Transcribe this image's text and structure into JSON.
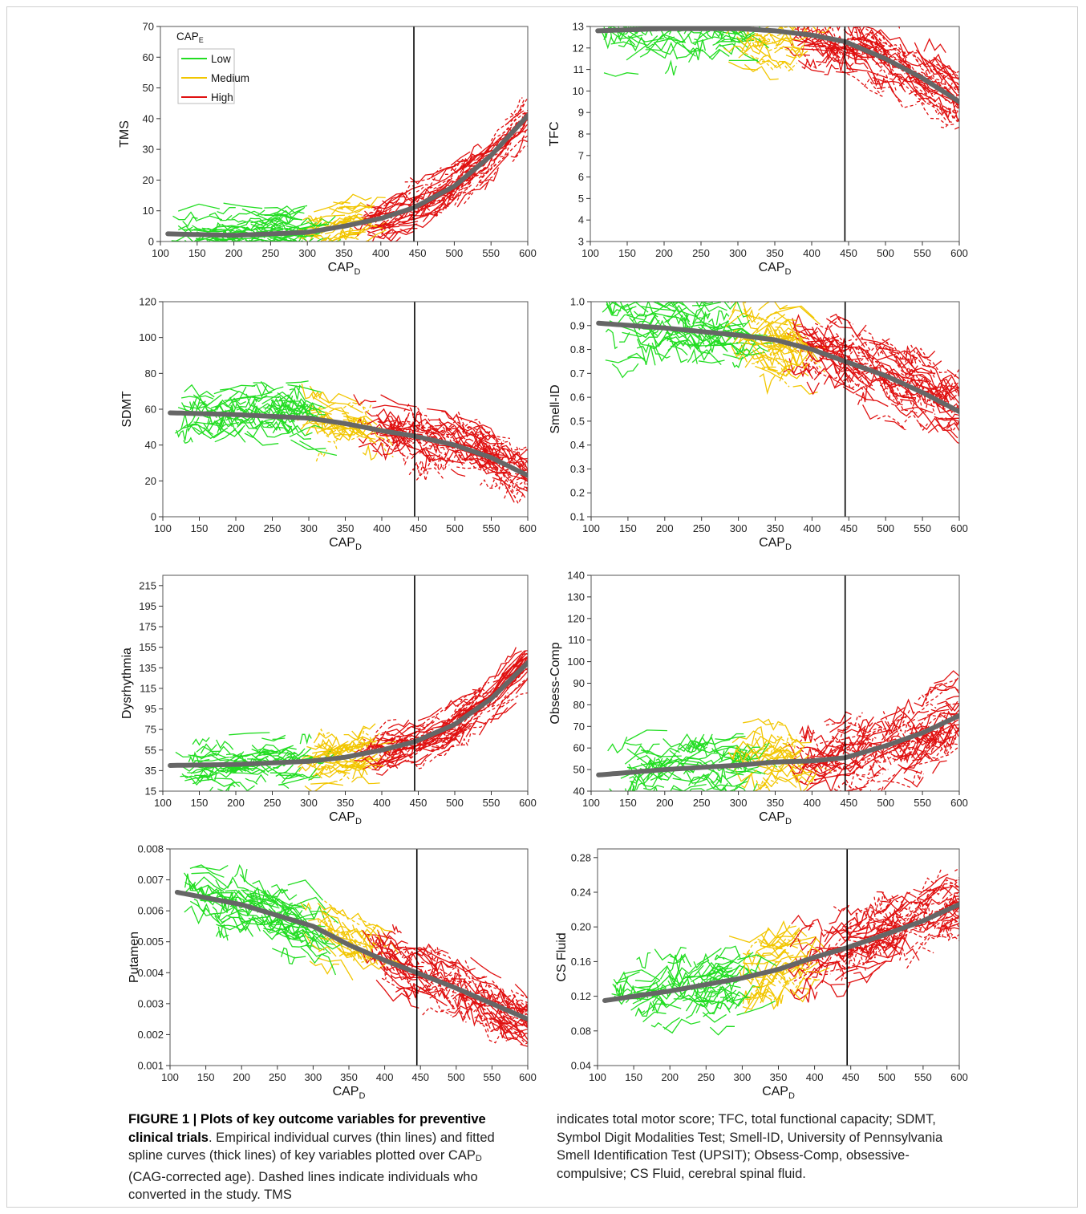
{
  "colors": {
    "low": "#22dd22",
    "medium": "#f2c600",
    "high": "#e01010",
    "spline": "#666666",
    "vline": "#000000"
  },
  "vline_x": 445,
  "legend": {
    "title_main": "CAP",
    "title_sub": "E",
    "items": [
      "Low",
      "Medium",
      "High"
    ]
  },
  "xlabel": {
    "main": "CAP",
    "sub": "D"
  },
  "caption": {
    "bold": "FIGURE 1 | Plots of key outcome variables for preventive clinical trials",
    "left_rest": ". Empirical individual curves (thin lines) and fitted spline curves (thick lines) of key variables plotted over CAP",
    "left_sub": "D",
    "left_end": " (CAG-corrected age). Dashed lines indicate individuals who converted in the study. TMS",
    "right": "indicates total motor score; TFC, total functional capacity; SDMT, Symbol Digit Modalities Test; Smell-ID, University of Pennsylvania Smell Identification Test (UPSIT); Obsess-Comp, obsessive-compulsive; CS Fluid, cerebral spinal fluid."
  },
  "chart_data": [
    {
      "type": "line",
      "ylabel": "TMS",
      "xlim": [
        100,
        600
      ],
      "ylim": [
        0,
        70
      ],
      "xticks": [
        "100",
        "150",
        "200",
        "250",
        "300",
        "350",
        "400",
        "450",
        "500",
        "550",
        "600"
      ],
      "yticks": [
        "0",
        "10",
        "20",
        "30",
        "40",
        "50",
        "60",
        "70"
      ],
      "legend": true,
      "spline": {
        "x": [
          110,
          200,
          300,
          350,
          400,
          445,
          500,
          550,
          600
        ],
        "y": [
          2.5,
          2,
          3,
          5,
          7.5,
          11,
          18,
          28,
          41
        ]
      },
      "noise": {
        "amp": 6,
        "spread": 0.55
      }
    },
    {
      "type": "line",
      "ylabel": "TFC",
      "xlim": [
        100,
        600
      ],
      "ylim": [
        3,
        13
      ],
      "xticks": [
        "100",
        "150",
        "200",
        "250",
        "300",
        "350",
        "400",
        "450",
        "500",
        "550",
        "600"
      ],
      "yticks": [
        "3",
        "4",
        "5",
        "6",
        "7",
        "8",
        "9",
        "10",
        "11",
        "12",
        "13"
      ],
      "spline": {
        "x": [
          110,
          200,
          300,
          350,
          400,
          445,
          500,
          550,
          600
        ],
        "y": [
          12.8,
          12.9,
          12.9,
          12.8,
          12.6,
          12.3,
          11.5,
          10.6,
          9.5
        ]
      },
      "noise": {
        "amp": 1.2,
        "spread": 0.7
      }
    },
    {
      "type": "line",
      "ylabel": "SDMT",
      "xlim": [
        100,
        600
      ],
      "ylim": [
        0,
        120
      ],
      "xticks": [
        "100",
        "150",
        "200",
        "250",
        "300",
        "350",
        "400",
        "450",
        "500",
        "550",
        "600"
      ],
      "yticks": [
        "0",
        "20",
        "40",
        "60",
        "80",
        "100",
        "120"
      ],
      "spline": {
        "x": [
          110,
          200,
          300,
          350,
          400,
          445,
          500,
          550,
          600
        ],
        "y": [
          58,
          57,
          55,
          52,
          48,
          45,
          40,
          33,
          23
        ]
      },
      "noise": {
        "amp": 12,
        "spread": 0.8
      }
    },
    {
      "type": "line",
      "ylabel": "Smell-ID",
      "xlim": [
        100,
        600
      ],
      "ylim": [
        0.1,
        1.0
      ],
      "xticks": [
        "100",
        "150",
        "200",
        "250",
        "300",
        "350",
        "400",
        "450",
        "500",
        "550",
        "600"
      ],
      "yticks": [
        "0.1",
        "0.2",
        "0.3",
        "0.4",
        "0.5",
        "0.6",
        "0.7",
        "0.8",
        "0.9",
        "1.0"
      ],
      "spline": {
        "x": [
          110,
          200,
          300,
          350,
          400,
          445,
          500,
          550,
          600
        ],
        "y": [
          0.91,
          0.89,
          0.86,
          0.84,
          0.8,
          0.75,
          0.69,
          0.62,
          0.54
        ]
      },
      "noise": {
        "amp": 0.11,
        "spread": 0.8
      }
    },
    {
      "type": "line",
      "ylabel": "Dysrhythmia",
      "xlim": [
        100,
        600
      ],
      "ylim": [
        15,
        225
      ],
      "xticks": [
        "100",
        "150",
        "200",
        "250",
        "300",
        "350",
        "400",
        "450",
        "500",
        "550",
        "600"
      ],
      "yticks": [
        "15",
        "35",
        "55",
        "75",
        "95",
        "115",
        "135",
        "155",
        "175",
        "195",
        "215"
      ],
      "spline": {
        "x": [
          110,
          200,
          300,
          350,
          400,
          445,
          500,
          550,
          600
        ],
        "y": [
          40,
          41,
          44,
          48,
          55,
          63,
          80,
          105,
          140
        ]
      },
      "noise": {
        "amp": 18,
        "spread": 0.6
      }
    },
    {
      "type": "line",
      "ylabel": "Obsess-Comp",
      "xlim": [
        100,
        600
      ],
      "ylim": [
        40,
        140
      ],
      "xticks": [
        "100",
        "150",
        "200",
        "250",
        "300",
        "350",
        "400",
        "450",
        "500",
        "550",
        "600"
      ],
      "yticks": [
        "40",
        "50",
        "60",
        "70",
        "80",
        "90",
        "100",
        "110",
        "120",
        "130",
        "140"
      ],
      "spline": {
        "x": [
          110,
          200,
          300,
          350,
          400,
          445,
          500,
          550,
          600
        ],
        "y": [
          47.5,
          50,
          52,
          53.5,
          54,
          55.5,
          61,
          67,
          75
        ]
      },
      "noise": {
        "amp": 14,
        "spread": 0.6
      }
    },
    {
      "type": "line",
      "ylabel": "Putamen",
      "xlim": [
        100,
        600
      ],
      "ylim": [
        0.001,
        0.008
      ],
      "xticks": [
        "100",
        "150",
        "200",
        "250",
        "300",
        "350",
        "400",
        "450",
        "500",
        "550",
        "600"
      ],
      "yticks": [
        "0.001",
        "0.002",
        "0.003",
        "0.004",
        "0.005",
        "0.006",
        "0.007",
        "0.008"
      ],
      "spline": {
        "x": [
          110,
          200,
          300,
          350,
          400,
          445,
          500,
          550,
          600
        ],
        "y": [
          0.0066,
          0.0062,
          0.0055,
          0.0049,
          0.0044,
          0.004,
          0.0035,
          0.003,
          0.0025
        ]
      },
      "noise": {
        "amp": 0.0007,
        "spread": 0.8
      }
    },
    {
      "type": "line",
      "ylabel": "CS Fluid",
      "xlim": [
        100,
        600
      ],
      "ylim": [
        0.04,
        0.29
      ],
      "xticks": [
        "100",
        "150",
        "200",
        "250",
        "300",
        "350",
        "400",
        "450",
        "500",
        "550",
        "600"
      ],
      "yticks": [
        "0.04",
        "0.08",
        "0.12",
        "0.16",
        "0.20",
        "0.24",
        "0.28"
      ],
      "spline": {
        "x": [
          110,
          200,
          300,
          350,
          400,
          445,
          500,
          550,
          600
        ],
        "y": [
          0.115,
          0.126,
          0.141,
          0.151,
          0.165,
          0.176,
          0.192,
          0.207,
          0.226
        ]
      },
      "noise": {
        "amp": 0.03,
        "spread": 0.7
      }
    }
  ]
}
